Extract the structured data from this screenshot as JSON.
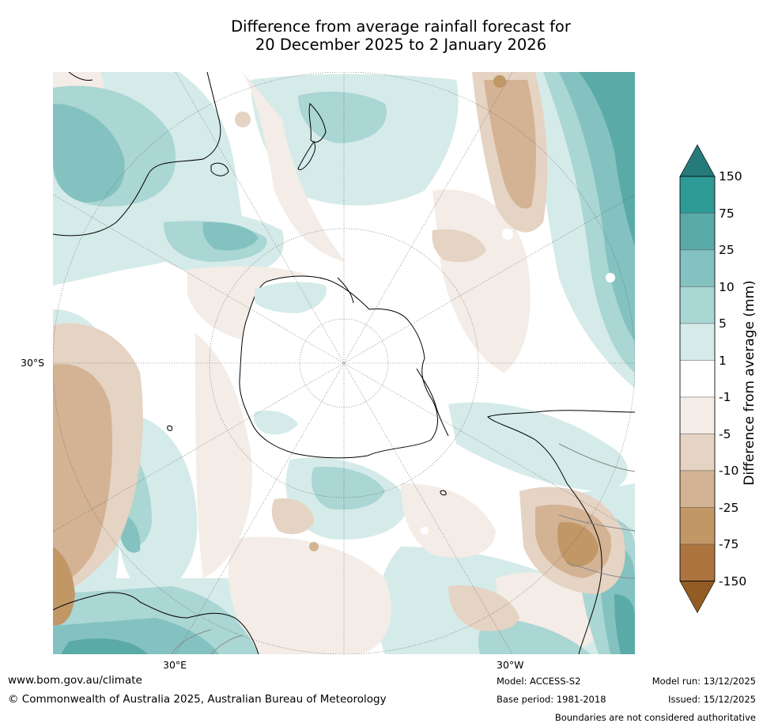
{
  "title": {
    "line1": "Difference from average rainfall forecast for",
    "line2": "20 December 2025 to 2 January 2026"
  },
  "map": {
    "projection": "south polar stereographic",
    "axis_labels": {
      "left": "30°S",
      "bottom_left": "30°E",
      "bottom_right": "30°W"
    },
    "colors": {
      "ocean": "#ffffff",
      "coastline": "#000000",
      "border": "#888888",
      "graticule": "#555555"
    }
  },
  "colorbar": {
    "label": "Difference from average (mm)",
    "ticks": [
      "150",
      "75",
      "25",
      "10",
      "5",
      "1",
      "-1",
      "-5",
      "-10",
      "-25",
      "-75",
      "-150"
    ],
    "bins": [
      {
        "range": "> 150",
        "color": "#267a7a"
      },
      {
        "range": "75 to 150",
        "color": "#2e9a96"
      },
      {
        "range": "25 to 75",
        "color": "#5aaaa8"
      },
      {
        "range": "10 to 25",
        "color": "#83c2c0"
      },
      {
        "range": "5 to 10",
        "color": "#aad6d4"
      },
      {
        "range": "1 to 5",
        "color": "#d5ebe9"
      },
      {
        "range": "-1 to 1",
        "color": "#ffffff"
      },
      {
        "range": "-5 to -1",
        "color": "#f4ece6"
      },
      {
        "range": "-10 to -5",
        "color": "#e5d3c3"
      },
      {
        "range": "-25 to -10",
        "color": "#d3b393"
      },
      {
        "range": "-75 to -25",
        "color": "#c19766"
      },
      {
        "range": "-150 to -75",
        "color": "#ad7440"
      },
      {
        "range": "< -150",
        "color": "#935c25"
      }
    ]
  },
  "footer": {
    "website": "www.bom.gov.au/climate",
    "copyright": "© Commonwealth of Australia 2025, Australian Bureau of Meteorology",
    "model": "Model: ACCESS-S2",
    "base_period": "Base period: 1981-2018",
    "model_run": "Model run: 13/12/2025",
    "issued": "Issued: 15/12/2025",
    "disclaimer": "Boundaries are not considered authoritative"
  }
}
